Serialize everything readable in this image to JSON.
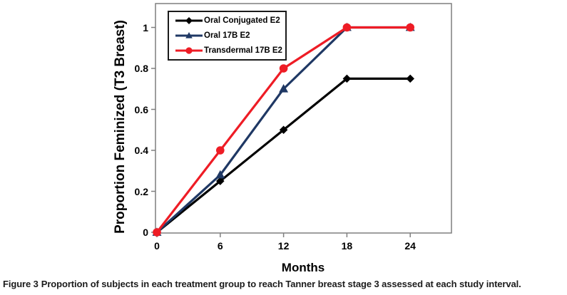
{
  "figure": {
    "caption_label": "Figure 3",
    "caption_text": "Proportion of subjects in each treatment group to reach Tanner breast stage 3 assessed at each study interval."
  },
  "chart_data": {
    "type": "line",
    "title": "",
    "xlabel": "Months",
    "ylabel": "Proportion Feminized (T3 Breast)",
    "x": [
      0,
      6,
      12,
      18,
      24
    ],
    "x_tick_labels": [
      "0",
      "6",
      "12",
      "18",
      "24"
    ],
    "y_ticks": [
      0,
      0.2,
      0.4,
      0.6,
      0.8,
      1
    ],
    "y_tick_labels": [
      "0",
      "0.2",
      "0.4",
      "0.6",
      "0.8",
      "1"
    ],
    "xlim": [
      0,
      28
    ],
    "ylim": [
      0,
      1.12
    ],
    "grid": false,
    "legend_position": "top-left-inside",
    "axis_color": "#7f7f7f",
    "series": [
      {
        "name": "Oral Conjugated E2",
        "color": "#000000",
        "marker": "diamond",
        "values": [
          0,
          0.25,
          0.5,
          0.75,
          0.75
        ]
      },
      {
        "name": "Oral 17B E2",
        "color": "#1F3864",
        "marker": "triangle",
        "values": [
          0,
          0.28,
          0.7,
          1.0,
          1.0
        ]
      },
      {
        "name": "Transdermal 17B E2",
        "color": "#EE1C25",
        "marker": "circle",
        "values": [
          0,
          0.4,
          0.8,
          1.0,
          1.0
        ]
      }
    ]
  }
}
